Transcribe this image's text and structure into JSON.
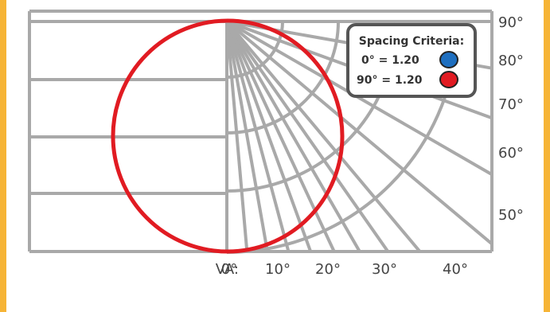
{
  "chart_data": {
    "type": "polar-photometric",
    "title": "",
    "axis_label": "VA:",
    "horizontal_angle_labels": [
      "0°",
      "10°",
      "20°",
      "30°",
      "40°"
    ],
    "vertical_angle_labels": [
      "50°",
      "60°",
      "70°",
      "80°",
      "90°"
    ],
    "legend": {
      "title": "Spacing Criteria:",
      "entries": [
        {
          "label": "0° = 1.20",
          "color": "#1e6fc0"
        },
        {
          "label": "90° = 1.20",
          "color": "#e11b22"
        }
      ]
    },
    "series": [
      {
        "name": "90° = 1.20",
        "color": "#e11b22",
        "shape": "circle"
      }
    ],
    "grid": true
  },
  "colors": {
    "frame": "#f6b436",
    "grid": "#a9a9a9",
    "legend_border": "#555555"
  }
}
